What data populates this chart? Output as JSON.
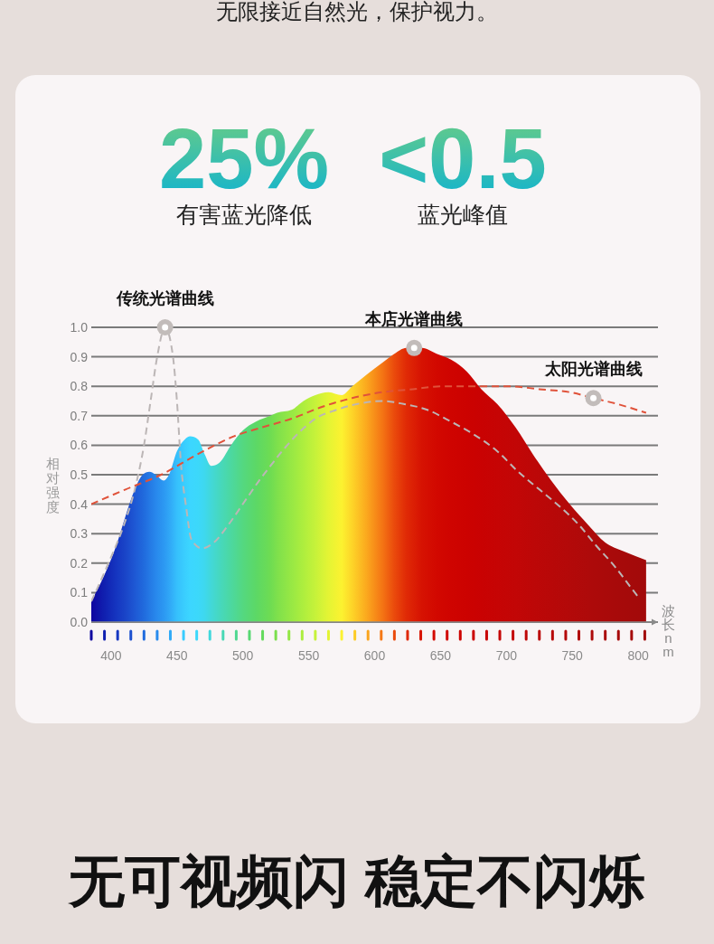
{
  "chart_data": {
    "type": "area",
    "title": "无限接近自然光，保护视力。",
    "xlabel": "波长nm",
    "ylabel": "相对强度",
    "series": [
      {
        "x": [
          385,
          395,
          404,
          411,
          418,
          424,
          429,
          434,
          440,
          444,
          450,
          456,
          460,
          466,
          471,
          476,
          482,
          491,
          500,
          510,
          521,
          526,
          537,
          546,
          555,
          565,
          575,
          583,
          594,
          606,
          615,
          624,
          636,
          647,
          658,
          670,
          681,
          693,
          707,
          720,
          734,
          748,
          762,
          775,
          789,
          806
        ],
        "values": [
          0.07,
          0.16,
          0.26,
          0.36,
          0.45,
          0.5,
          0.51,
          0.5,
          0.48,
          0.5,
          0.58,
          0.62,
          0.63,
          0.62,
          0.57,
          0.53,
          0.54,
          0.6,
          0.65,
          0.68,
          0.7,
          0.71,
          0.72,
          0.75,
          0.77,
          0.78,
          0.77,
          0.8,
          0.84,
          0.88,
          0.91,
          0.93,
          0.93,
          0.91,
          0.89,
          0.85,
          0.79,
          0.74,
          0.66,
          0.57,
          0.48,
          0.4,
          0.33,
          0.27,
          0.24,
          0.21
        ],
        "colors": [
          "#0f06a0",
          "#1020b0",
          "#1535c0",
          "#1a45c8",
          "#1e58d4",
          "#2068dc",
          "#2478e4",
          "#2888ec",
          "#2c98f2",
          "#30a6f6",
          "#36c0fc",
          "#3acefe",
          "#3cd6ff",
          "#3cd8fa",
          "#3ed8ee",
          "#42d8d8",
          "#46d8c0",
          "#4cd8a0",
          "#54d880",
          "#5cd866",
          "#6edc52",
          "#7ee04c",
          "#98e844",
          "#aeee3e",
          "#c6f23a",
          "#e4f434",
          "#fcf230",
          "#fdd428",
          "#fba81e",
          "#f47414",
          "#ea4a0c",
          "#e02a06",
          "#d61202",
          "#d20800",
          "#cf0400",
          "#cc0200",
          "#c90202",
          "#c60404",
          "#c20606",
          "#bd0707",
          "#b80808",
          "#b30909",
          "#ae0a0a",
          "#aa0a0a",
          "#a60a0a",
          "#a20a0a"
        ]
      },
      {
        "type": "line",
        "color": "#bcb6b6",
        "line_style": "dashed",
        "x": [
          385,
          398,
          409,
          418,
          425,
          430,
          435,
          441,
          447,
          450,
          453,
          457,
          461,
          469,
          478,
          489,
          503,
          514,
          521,
          528,
          542,
          555,
          571,
          587,
          606,
          622,
          640,
          658,
          674,
          693,
          709,
          725,
          741,
          755,
          768,
          782,
          794,
          801
        ],
        "values": [
          0.07,
          0.2,
          0.32,
          0.45,
          0.6,
          0.75,
          0.9,
          1.0,
          0.9,
          0.75,
          0.54,
          0.39,
          0.28,
          0.25,
          0.27,
          0.33,
          0.42,
          0.49,
          0.53,
          0.57,
          0.64,
          0.69,
          0.72,
          0.74,
          0.75,
          0.74,
          0.72,
          0.68,
          0.64,
          0.58,
          0.51,
          0.45,
          0.39,
          0.33,
          0.26,
          0.19,
          0.12,
          0.08
        ]
      },
      {
        "type": "line",
        "color": "#e0523a",
        "line_style": "dashed",
        "x": [
          385,
          411,
          438,
          466,
          493,
          514,
          537,
          560,
          583,
          606,
          629,
          651,
          674,
          702,
          725,
          748,
          766,
          784,
          806
        ],
        "values": [
          0.4,
          0.45,
          0.5,
          0.57,
          0.63,
          0.66,
          0.69,
          0.73,
          0.76,
          0.78,
          0.79,
          0.8,
          0.8,
          0.8,
          0.79,
          0.78,
          0.76,
          0.74,
          0.71
        ]
      }
    ],
    "xlim": [
      385,
      815
    ],
    "xticks": [
      {
        "value": 385,
        "label": null
      },
      {
        "value": 395,
        "label": null
      },
      400,
      {
        "value": 405,
        "label": null
      },
      {
        "value": 415,
        "label": null
      },
      {
        "value": 425,
        "label": null
      },
      {
        "value": 435,
        "label": null
      },
      {
        "value": 445,
        "label": null
      },
      450,
      {
        "value": 455,
        "label": null
      },
      {
        "value": 465,
        "label": null
      },
      {
        "value": 475,
        "label": null
      },
      {
        "value": 485,
        "label": null
      },
      {
        "value": 495,
        "label": null
      },
      500,
      {
        "value": 505,
        "label": null
      },
      {
        "value": 515,
        "label": null
      },
      {
        "value": 525,
        "label": null
      },
      {
        "value": 535,
        "label": null
      },
      {
        "value": 545,
        "label": null
      },
      550,
      {
        "value": 555,
        "label": null
      },
      {
        "value": 565,
        "label": null
      },
      {
        "value": 575,
        "label": null
      },
      {
        "value": 585,
        "label": null
      },
      {
        "value": 595,
        "label": null
      },
      600,
      {
        "value": 605,
        "label": null
      },
      {
        "value": 615,
        "label": null
      },
      {
        "value": 625,
        "label": null
      },
      {
        "value": 635,
        "label": null
      },
      {
        "value": 645,
        "label": null
      },
      650,
      {
        "value": 655,
        "label": null
      },
      {
        "value": 665,
        "label": null
      },
      {
        "value": 675,
        "label": null
      },
      {
        "value": 685,
        "label": null
      },
      {
        "value": 695,
        "label": null
      },
      700,
      {
        "value": 705,
        "label": null
      },
      {
        "value": 715,
        "label": null
      },
      {
        "value": 725,
        "label": null
      },
      {
        "value": 735,
        "label": null
      },
      {
        "value": 745,
        "label": null
      },
      750,
      {
        "value": 755,
        "label": null
      },
      {
        "value": 765,
        "label": null
      },
      {
        "value": 775,
        "label": null
      },
      {
        "value": 785,
        "label": null
      },
      {
        "value": 795,
        "label": null
      },
      800,
      {
        "value": 805,
        "label": null
      }
    ],
    "ylim": [
      0,
      1
    ],
    "yticks": [
      {
        "value": 0,
        "label": "0.0"
      },
      0.1,
      0.2,
      0.3,
      0.4,
      0.5,
      0.6,
      0.7,
      0.8,
      0.9,
      {
        "value": 1,
        "label": "1.0"
      }
    ],
    "grid": "y",
    "annotations": [
      {
        "text": "传统光谱曲线",
        "x": 441,
        "y": 1.0
      },
      {
        "text": "本店光谱曲线",
        "x": 630,
        "y": 0.93
      },
      {
        "text": "太阳光谱曲线",
        "x": 766,
        "y": 0.76
      },
      "25%",
      "有害蓝光降低",
      "<0.5",
      "蓝光峰值",
      "无可视频闪 稳定不闪烁"
    ]
  }
}
